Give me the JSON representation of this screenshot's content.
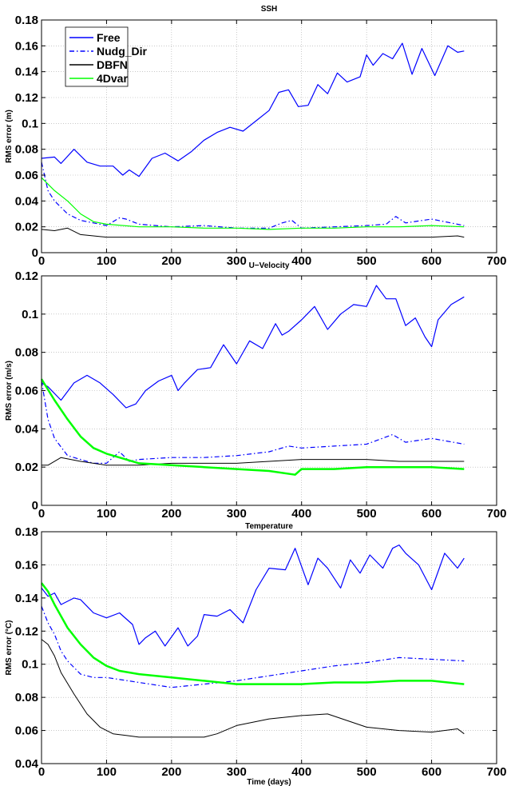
{
  "figure": {
    "legend_entries": [
      {
        "name": "Free",
        "color": "#0000ff",
        "dash": "solid"
      },
      {
        "name": "Nudg_Dir",
        "color": "#0000ff",
        "dash": "dashdot"
      },
      {
        "name": "DBFN",
        "color": "#000000",
        "dash": "solid"
      },
      {
        "name": "4Dvar",
        "color": "#00ff00",
        "dash": "solid"
      }
    ]
  },
  "chart_data": [
    {
      "type": "line",
      "title": "SSH",
      "xlabel": "",
      "ylabel": "RMS error (m)",
      "xlim": [
        0,
        700
      ],
      "ylim": [
        0,
        0.18
      ],
      "xticks": [
        0,
        100,
        200,
        300,
        400,
        500,
        600,
        700
      ],
      "xtick_labels": [
        "0",
        "100",
        "200",
        "300",
        "400",
        "500",
        "600",
        "700"
      ],
      "yticks": [
        0,
        0.02,
        0.04,
        0.06,
        0.08,
        0.1,
        0.12,
        0.14,
        0.16,
        0.18
      ],
      "ytick_labels": [
        "0",
        "0.02",
        "0.04",
        "0.06",
        "0.08",
        "0.1",
        "0.12",
        "0.14",
        "0.16",
        "0.18"
      ],
      "grid": true,
      "legend": "top-left",
      "series": [
        {
          "name": "Free",
          "color": "#0000ff",
          "dash": "solid",
          "width": 1.2,
          "x": [
            0,
            20,
            30,
            50,
            70,
            90,
            110,
            125,
            135,
            150,
            170,
            190,
            210,
            230,
            250,
            270,
            290,
            310,
            330,
            350,
            365,
            380,
            395,
            410,
            425,
            440,
            455,
            470,
            490,
            500,
            510,
            525,
            540,
            555,
            570,
            585,
            605,
            625,
            640,
            650
          ],
          "y": [
            0.073,
            0.074,
            0.069,
            0.08,
            0.07,
            0.067,
            0.067,
            0.06,
            0.064,
            0.059,
            0.073,
            0.077,
            0.071,
            0.078,
            0.087,
            0.093,
            0.097,
            0.094,
            0.102,
            0.11,
            0.124,
            0.126,
            0.113,
            0.114,
            0.13,
            0.123,
            0.139,
            0.132,
            0.136,
            0.153,
            0.145,
            0.154,
            0.15,
            0.162,
            0.138,
            0.158,
            0.137,
            0.16,
            0.155,
            0.156
          ]
        },
        {
          "name": "Nudg_Dir",
          "color": "#0000ff",
          "dash": "dashdot",
          "width": 1.2,
          "x": [
            0,
            10,
            20,
            40,
            60,
            80,
            100,
            120,
            130,
            150,
            200,
            250,
            300,
            350,
            370,
            385,
            400,
            450,
            500,
            530,
            545,
            560,
            600,
            650
          ],
          "y": [
            0.07,
            0.048,
            0.04,
            0.03,
            0.025,
            0.023,
            0.021,
            0.027,
            0.026,
            0.022,
            0.02,
            0.021,
            0.019,
            0.019,
            0.023,
            0.025,
            0.019,
            0.02,
            0.021,
            0.022,
            0.028,
            0.023,
            0.026,
            0.021
          ]
        },
        {
          "name": "DBFN",
          "color": "#000000",
          "dash": "solid",
          "width": 1.0,
          "x": [
            0,
            20,
            40,
            60,
            80,
            100,
            150,
            200,
            250,
            300,
            350,
            400,
            450,
            500,
            550,
            600,
            640,
            650
          ],
          "y": [
            0.018,
            0.017,
            0.019,
            0.014,
            0.013,
            0.012,
            0.012,
            0.012,
            0.012,
            0.012,
            0.012,
            0.012,
            0.012,
            0.012,
            0.012,
            0.012,
            0.013,
            0.012
          ]
        },
        {
          "name": "4Dvar",
          "color": "#00ff00",
          "dash": "solid",
          "width": 1.2,
          "x": [
            0,
            20,
            40,
            60,
            80,
            100,
            150,
            200,
            250,
            300,
            350,
            400,
            450,
            500,
            550,
            600,
            650
          ],
          "y": [
            0.058,
            0.048,
            0.04,
            0.03,
            0.024,
            0.022,
            0.02,
            0.02,
            0.019,
            0.019,
            0.018,
            0.019,
            0.019,
            0.02,
            0.02,
            0.021,
            0.02
          ]
        }
      ]
    },
    {
      "type": "line",
      "title": "U−Velocity",
      "xlabel": "",
      "ylabel": "RMS error (m/s)",
      "xlim": [
        0,
        700
      ],
      "ylim": [
        0,
        0.12
      ],
      "xticks": [
        0,
        100,
        200,
        300,
        400,
        500,
        600,
        700
      ],
      "xtick_labels": [
        "0",
        "100",
        "200",
        "300",
        "400",
        "500",
        "600",
        "700"
      ],
      "yticks": [
        0,
        0.02,
        0.04,
        0.06,
        0.08,
        0.1,
        0.12
      ],
      "ytick_labels": [
        "0",
        "0.02",
        "0.04",
        "0.06",
        "0.08",
        "0.1",
        "0.12"
      ],
      "grid": true,
      "legend": "",
      "series": [
        {
          "name": "Free",
          "color": "#0000ff",
          "dash": "solid",
          "width": 1.2,
          "x": [
            0,
            10,
            30,
            50,
            70,
            90,
            110,
            130,
            145,
            160,
            180,
            200,
            210,
            220,
            240,
            260,
            280,
            300,
            320,
            340,
            360,
            370,
            380,
            400,
            420,
            440,
            460,
            480,
            500,
            515,
            530,
            545,
            560,
            575,
            590,
            600,
            610,
            630,
            650
          ],
          "y": [
            0.064,
            0.062,
            0.055,
            0.064,
            0.068,
            0.064,
            0.058,
            0.051,
            0.053,
            0.06,
            0.065,
            0.068,
            0.06,
            0.064,
            0.071,
            0.072,
            0.084,
            0.074,
            0.086,
            0.082,
            0.095,
            0.089,
            0.091,
            0.097,
            0.104,
            0.092,
            0.1,
            0.105,
            0.104,
            0.115,
            0.108,
            0.108,
            0.094,
            0.098,
            0.088,
            0.083,
            0.097,
            0.105,
            0.109
          ]
        },
        {
          "name": "Nudg_Dir",
          "color": "#0000ff",
          "dash": "dashdot",
          "width": 1.2,
          "x": [
            0,
            10,
            20,
            40,
            60,
            80,
            100,
            120,
            135,
            150,
            200,
            250,
            300,
            350,
            380,
            400,
            450,
            500,
            540,
            560,
            600,
            650
          ],
          "y": [
            0.065,
            0.045,
            0.035,
            0.026,
            0.024,
            0.022,
            0.022,
            0.028,
            0.023,
            0.024,
            0.025,
            0.025,
            0.026,
            0.028,
            0.031,
            0.03,
            0.031,
            0.032,
            0.037,
            0.033,
            0.035,
            0.032
          ]
        },
        {
          "name": "DBFN",
          "color": "#000000",
          "dash": "solid",
          "width": 1.0,
          "x": [
            0,
            10,
            30,
            60,
            100,
            150,
            200,
            250,
            300,
            350,
            400,
            450,
            500,
            550,
            600,
            650
          ],
          "y": [
            0.021,
            0.021,
            0.025,
            0.023,
            0.021,
            0.021,
            0.022,
            0.022,
            0.022,
            0.023,
            0.024,
            0.024,
            0.024,
            0.023,
            0.023,
            0.023
          ]
        },
        {
          "name": "4Dvar",
          "color": "#00ff00",
          "dash": "solid",
          "width": 2.5,
          "x": [
            0,
            20,
            40,
            60,
            80,
            100,
            120,
            150,
            200,
            250,
            300,
            350,
            390,
            400,
            450,
            500,
            550,
            600,
            650
          ],
          "y": [
            0.066,
            0.055,
            0.045,
            0.036,
            0.03,
            0.027,
            0.025,
            0.022,
            0.021,
            0.02,
            0.019,
            0.018,
            0.016,
            0.019,
            0.019,
            0.02,
            0.02,
            0.02,
            0.019
          ]
        }
      ]
    },
    {
      "type": "line",
      "title": "Temperature",
      "xlabel": "Time (days)",
      "ylabel": "RMS error (°C)",
      "xlim": [
        0,
        700
      ],
      "ylim": [
        0.04,
        0.18
      ],
      "xticks": [
        0,
        100,
        200,
        300,
        400,
        500,
        600,
        700
      ],
      "xtick_labels": [
        "0",
        "100",
        "200",
        "300",
        "400",
        "500",
        "600",
        "700"
      ],
      "yticks": [
        0.04,
        0.06,
        0.08,
        0.1,
        0.12,
        0.14,
        0.16,
        0.18
      ],
      "ytick_labels": [
        "0.04",
        "0.06",
        "0.08",
        "0.1",
        "0.12",
        "0.14",
        "0.16",
        "0.18"
      ],
      "grid": true,
      "legend": "",
      "series": [
        {
          "name": "Free",
          "color": "#0000ff",
          "dash": "solid",
          "width": 1.2,
          "x": [
            0,
            10,
            20,
            30,
            50,
            60,
            80,
            100,
            120,
            140,
            150,
            160,
            175,
            190,
            210,
            225,
            240,
            250,
            270,
            290,
            310,
            330,
            350,
            375,
            390,
            410,
            425,
            440,
            460,
            475,
            490,
            505,
            525,
            540,
            550,
            560,
            580,
            600,
            620,
            640,
            650
          ],
          "y": [
            0.146,
            0.141,
            0.143,
            0.136,
            0.14,
            0.139,
            0.131,
            0.128,
            0.131,
            0.124,
            0.112,
            0.116,
            0.12,
            0.111,
            0.122,
            0.111,
            0.117,
            0.13,
            0.129,
            0.133,
            0.125,
            0.145,
            0.158,
            0.157,
            0.17,
            0.148,
            0.164,
            0.158,
            0.146,
            0.163,
            0.155,
            0.166,
            0.158,
            0.17,
            0.172,
            0.167,
            0.16,
            0.145,
            0.167,
            0.158,
            0.164
          ]
        },
        {
          "name": "Nudg_Dir",
          "color": "#0000ff",
          "dash": "dashdot",
          "width": 1.2,
          "x": [
            0,
            10,
            20,
            30,
            40,
            60,
            80,
            100,
            150,
            200,
            250,
            300,
            350,
            400,
            450,
            500,
            550,
            600,
            650
          ],
          "y": [
            0.135,
            0.125,
            0.118,
            0.108,
            0.102,
            0.094,
            0.092,
            0.092,
            0.089,
            0.086,
            0.088,
            0.09,
            0.093,
            0.096,
            0.099,
            0.101,
            0.104,
            0.103,
            0.102
          ]
        },
        {
          "name": "DBFN",
          "color": "#000000",
          "dash": "solid",
          "width": 1.0,
          "x": [
            0,
            10,
            20,
            30,
            50,
            70,
            90,
            110,
            130,
            150,
            200,
            250,
            270,
            300,
            350,
            400,
            440,
            470,
            500,
            550,
            600,
            640,
            650
          ],
          "y": [
            0.115,
            0.112,
            0.105,
            0.095,
            0.082,
            0.07,
            0.062,
            0.058,
            0.057,
            0.056,
            0.056,
            0.056,
            0.058,
            0.063,
            0.067,
            0.069,
            0.07,
            0.066,
            0.062,
            0.06,
            0.059,
            0.061,
            0.058
          ]
        },
        {
          "name": "4Dvar",
          "color": "#00ff00",
          "dash": "solid",
          "width": 2.5,
          "x": [
            0,
            10,
            20,
            40,
            60,
            80,
            100,
            120,
            150,
            200,
            250,
            300,
            350,
            400,
            450,
            500,
            550,
            600,
            650
          ],
          "y": [
            0.149,
            0.144,
            0.136,
            0.122,
            0.112,
            0.104,
            0.099,
            0.096,
            0.094,
            0.092,
            0.09,
            0.088,
            0.088,
            0.088,
            0.089,
            0.089,
            0.09,
            0.09,
            0.088
          ]
        }
      ]
    }
  ]
}
